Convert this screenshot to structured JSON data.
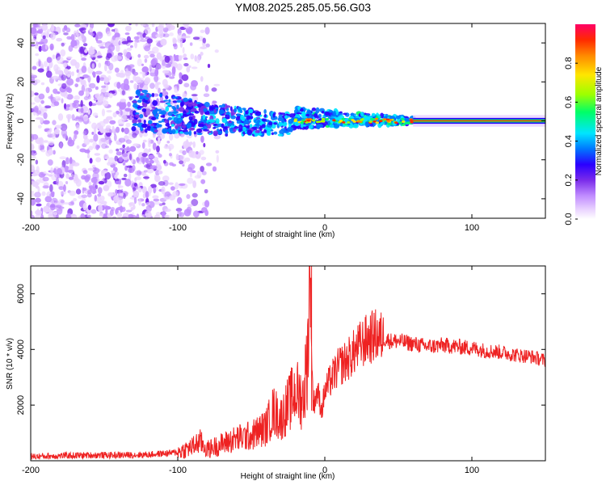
{
  "title": "YM08.2025.285.05.56.G03",
  "chart_data": [
    {
      "type": "heatmap",
      "xlabel": "Height of straight line (km)",
      "ylabel": "Frequency (Hz)",
      "xlim": [
        -200,
        150
      ],
      "ylim": [
        -50,
        50
      ],
      "xticks": [
        -200,
        -100,
        0,
        100
      ],
      "yticks": [
        -40,
        -20,
        0,
        20,
        40
      ],
      "colorbar": {
        "label": "Normalized spectral amplitude",
        "range": [
          0,
          1
        ],
        "ticks": [
          "0.0",
          "0.2",
          "0.4",
          "0.6",
          "0.8"
        ],
        "colors": [
          "#ffffff",
          "#e9d2ff",
          "#c08cff",
          "#7a2bea",
          "#2a00ff",
          "#0077ff",
          "#00e5ff",
          "#00ff66",
          "#9dff00",
          "#ffe600",
          "#ff8800",
          "#ff2a00",
          "#ff0066"
        ]
      },
      "features": {
        "scatter_region_x": [
          -200,
          -80
        ],
        "trend_region_x": [
          -130,
          60
        ],
        "flat_line_x": [
          60,
          150
        ],
        "flat_line_frequency": 0
      }
    },
    {
      "type": "line",
      "xlabel": "Height of straight line (km)",
      "ylabel": "SNR (10 * v/v)",
      "xlim": [
        -200,
        150
      ],
      "ylim": [
        0,
        7000
      ],
      "xticks": [
        -200,
        -100,
        0,
        100
      ],
      "yticks": [
        2000,
        4000,
        6000
      ],
      "color": "#ee2222",
      "series": [
        {
          "name": "SNR",
          "x": [
            -200,
            -180,
            -160,
            -140,
            -120,
            -100,
            -90,
            -85,
            -80,
            -70,
            -60,
            -50,
            -40,
            -35,
            -30,
            -25,
            -20,
            -15,
            -12,
            -10,
            -8,
            -5,
            -2,
            0,
            5,
            10,
            15,
            20,
            25,
            30,
            35,
            40,
            45,
            50,
            60,
            70,
            80,
            90,
            100,
            110,
            120,
            130,
            140,
            150
          ],
          "values": [
            150,
            180,
            200,
            200,
            220,
            300,
            500,
            700,
            400,
            600,
            800,
            900,
            1200,
            1800,
            1500,
            2000,
            2500,
            2200,
            3500,
            6700,
            2000,
            2500,
            1800,
            2500,
            3000,
            3400,
            3600,
            3900,
            4200,
            4400,
            4500,
            4400,
            4300,
            4300,
            4200,
            4100,
            4150,
            4100,
            4050,
            3950,
            3900,
            3800,
            3750,
            3600
          ]
        }
      ]
    }
  ]
}
